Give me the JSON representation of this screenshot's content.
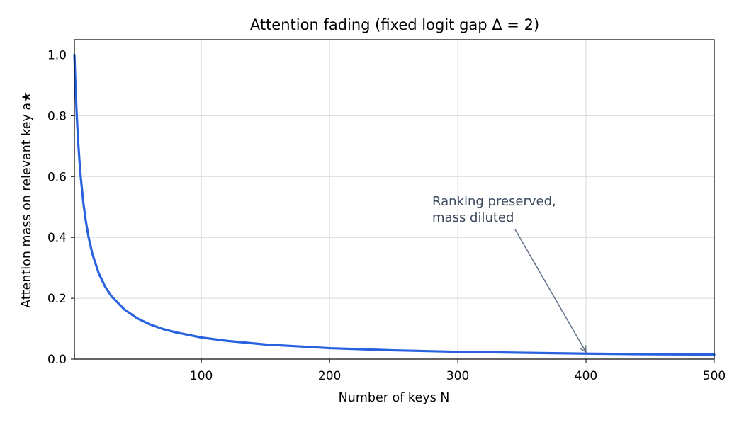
{
  "chart_data": {
    "type": "line",
    "title": "Attention fading (fixed logit gap Δ = 2)",
    "xlabel": "Number of keys N",
    "ylabel": "Attention mass on relevant key a★",
    "xlim": [
      1,
      500
    ],
    "ylim": [
      0,
      1.05
    ],
    "x_ticks": [
      100,
      200,
      300,
      400,
      500
    ],
    "y_ticks": [
      0.0,
      0.2,
      0.4,
      0.6,
      0.8,
      1.0
    ],
    "grid": true,
    "logit_gap": 2,
    "series": [
      {
        "color": "#2962de",
        "x": [
          1,
          2,
          3,
          4,
          5,
          6,
          8,
          10,
          12,
          15,
          20,
          25,
          30,
          40,
          50,
          60,
          70,
          80,
          100,
          120,
          150,
          175,
          200,
          250,
          300,
          350,
          400,
          450,
          500
        ],
        "values": [
          1.0,
          0.881,
          0.787,
          0.711,
          0.649,
          0.596,
          0.513,
          0.451,
          0.402,
          0.346,
          0.282,
          0.238,
          0.206,
          0.163,
          0.134,
          0.114,
          0.099,
          0.088,
          0.071,
          0.06,
          0.048,
          0.042,
          0.036,
          0.029,
          0.024,
          0.021,
          0.018,
          0.016,
          0.015
        ]
      }
    ],
    "annotation": {
      "lines": [
        "Ranking preserved,",
        "mass diluted"
      ],
      "x": 400,
      "y": 0.018,
      "color": "#3c4a5e"
    }
  }
}
